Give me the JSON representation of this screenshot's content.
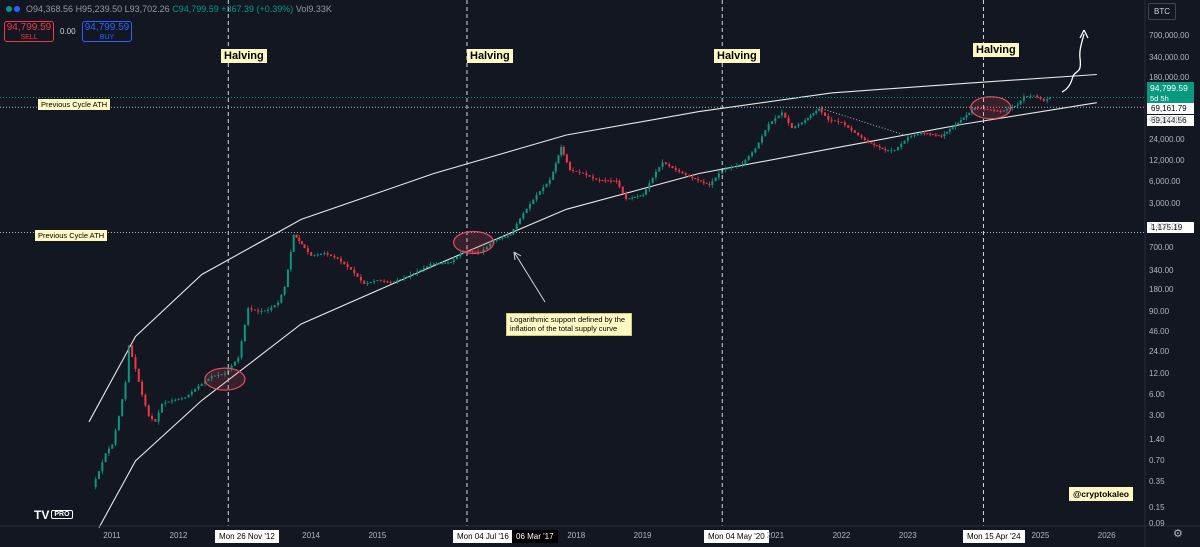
{
  "header": {
    "o": "O94,368.56",
    "h": "H95,239.50",
    "l": "L93,702.26",
    "c": "C94,799.59",
    "chg": "+367.39 (+0.39%)",
    "vol": "Vol9.33K"
  },
  "trade": {
    "sell_price": "94,799.59",
    "sell_label": "SELL",
    "spread": "0.00",
    "buy_price": "94,799.59",
    "buy_label": "BUY"
  },
  "symbol": "BTC",
  "price_badge": {
    "price": "94,799.59",
    "countdown": "5d 5h"
  },
  "levels": {
    "a": "69,161.79",
    "b": "69,144.56",
    "c": "1,175.19"
  },
  "labels": {
    "halving": "Halving",
    "ath": "Previous Cycle ATH",
    "note": "Logarithmic support defined by the inflation of the total supply curve",
    "handle": "@cryptokaleo",
    "tv": "TV",
    "pro": "PRO"
  },
  "date_tags": [
    "Mon 26 Nov '12",
    "Mon 04 Jul '16",
    "06 Mar '17",
    "Mon 04 May '20",
    "Mon 15 Apr '24"
  ],
  "colors": {
    "up": "#089981",
    "down": "#f23645",
    "accent": "#2962ff",
    "note_bg": "#fff9c4"
  },
  "chart_data": {
    "type": "line",
    "yscale": "log",
    "y_ticks": [
      "700,000.00",
      "340,000.00",
      "180,000.00",
      "45,000.00",
      "24,000.00",
      "12,000.00",
      "6,000.00",
      "3,000.00",
      "1,400.00",
      "700.00",
      "340.00",
      "180.00",
      "90.00",
      "46.00",
      "24.00",
      "12.00",
      "6.00",
      "3.00",
      "1.40",
      "0.70",
      "0.35",
      "0.15",
      "0.09"
    ],
    "x_ticks": [
      "2011",
      "2012",
      "2014",
      "2015",
      "2018",
      "2019",
      "2021",
      "2022",
      "2023",
      "2025",
      "2026"
    ],
    "series": [
      {
        "values": [
          [
            2010.9,
            0.3
          ],
          [
            2011.0,
            0.5
          ],
          [
            2011.1,
            0.9
          ],
          [
            2011.2,
            1.2
          ],
          [
            2011.3,
            3
          ],
          [
            2011.4,
            9
          ],
          [
            2011.45,
            30
          ],
          [
            2011.55,
            14
          ],
          [
            2011.65,
            6
          ],
          [
            2011.75,
            3
          ],
          [
            2011.85,
            2.5
          ],
          [
            2011.95,
            4.5
          ],
          [
            2012.1,
            5
          ],
          [
            2012.3,
            5.5
          ],
          [
            2012.5,
            8
          ],
          [
            2012.7,
            11
          ],
          [
            2012.9,
            12
          ],
          [
            2013.1,
            20
          ],
          [
            2013.25,
            100
          ],
          [
            2013.4,
            90
          ],
          [
            2013.55,
            95
          ],
          [
            2013.7,
            120
          ],
          [
            2013.8,
            200
          ],
          [
            2013.93,
            1100
          ],
          [
            2014.05,
            800
          ],
          [
            2014.2,
            550
          ],
          [
            2014.4,
            600
          ],
          [
            2014.6,
            500
          ],
          [
            2014.8,
            350
          ],
          [
            2015.0,
            220
          ],
          [
            2015.2,
            250
          ],
          [
            2015.4,
            230
          ],
          [
            2015.6,
            270
          ],
          [
            2015.8,
            330
          ],
          [
            2016.0,
            420
          ],
          [
            2016.3,
            450
          ],
          [
            2016.5,
            650
          ],
          [
            2016.75,
            620
          ],
          [
            2016.95,
            900
          ],
          [
            2017.2,
            1100
          ],
          [
            2017.4,
            2200
          ],
          [
            2017.6,
            4000
          ],
          [
            2017.8,
            6500
          ],
          [
            2017.96,
            19000
          ],
          [
            2018.1,
            9000
          ],
          [
            2018.3,
            8000
          ],
          [
            2018.5,
            6500
          ],
          [
            2018.8,
            6300
          ],
          [
            2018.95,
            3500
          ],
          [
            2019.2,
            4000
          ],
          [
            2019.4,
            8500
          ],
          [
            2019.5,
            11500
          ],
          [
            2019.7,
            9000
          ],
          [
            2019.9,
            7200
          ],
          [
            2020.2,
            5500
          ],
          [
            2020.4,
            9000
          ],
          [
            2020.7,
            11000
          ],
          [
            2020.9,
            18000
          ],
          [
            2021.1,
            40000
          ],
          [
            2021.3,
            58000
          ],
          [
            2021.45,
            35000
          ],
          [
            2021.6,
            42000
          ],
          [
            2021.85,
            66000
          ],
          [
            2022.0,
            46000
          ],
          [
            2022.2,
            42000
          ],
          [
            2022.4,
            30000
          ],
          [
            2022.6,
            22000
          ],
          [
            2022.85,
            17000
          ],
          [
            2023.0,
            17000
          ],
          [
            2023.2,
            26000
          ],
          [
            2023.4,
            30000
          ],
          [
            2023.7,
            27000
          ],
          [
            2023.95,
            42000
          ],
          [
            2024.2,
            68000
          ],
          [
            2024.4,
            64000
          ],
          [
            2024.6,
            60000
          ],
          [
            2024.85,
            75000
          ],
          [
            2024.95,
            98000
          ],
          [
            2025.1,
            101000
          ],
          [
            2025.25,
            85000
          ],
          [
            2025.33,
            94799.59
          ]
        ]
      }
    ],
    "upper_curve": [
      [
        2010.8,
        2.5
      ],
      [
        2011.5,
        40
      ],
      [
        2012.5,
        300
      ],
      [
        2014.0,
        1800
      ],
      [
        2016.0,
        8000
      ],
      [
        2018.0,
        28000
      ],
      [
        2020.0,
        60000
      ],
      [
        2022.0,
        110000
      ],
      [
        2024.0,
        150000
      ],
      [
        2026.0,
        200000
      ]
    ],
    "lower_curve": [
      [
        2010.95,
        0.08
      ],
      [
        2011.5,
        0.7
      ],
      [
        2012.5,
        5
      ],
      [
        2014.0,
        60
      ],
      [
        2016.0,
        400
      ],
      [
        2018.0,
        2500
      ],
      [
        2020.0,
        8000
      ],
      [
        2022.0,
        18000
      ],
      [
        2024.0,
        40000
      ],
      [
        2026.0,
        80000
      ]
    ],
    "halvings": [
      2012.9,
      2016.5,
      2020.35,
      2024.29
    ],
    "previous_cycle_ath": [
      69000,
      1175.19
    ],
    "current_price": 94799.59
  }
}
